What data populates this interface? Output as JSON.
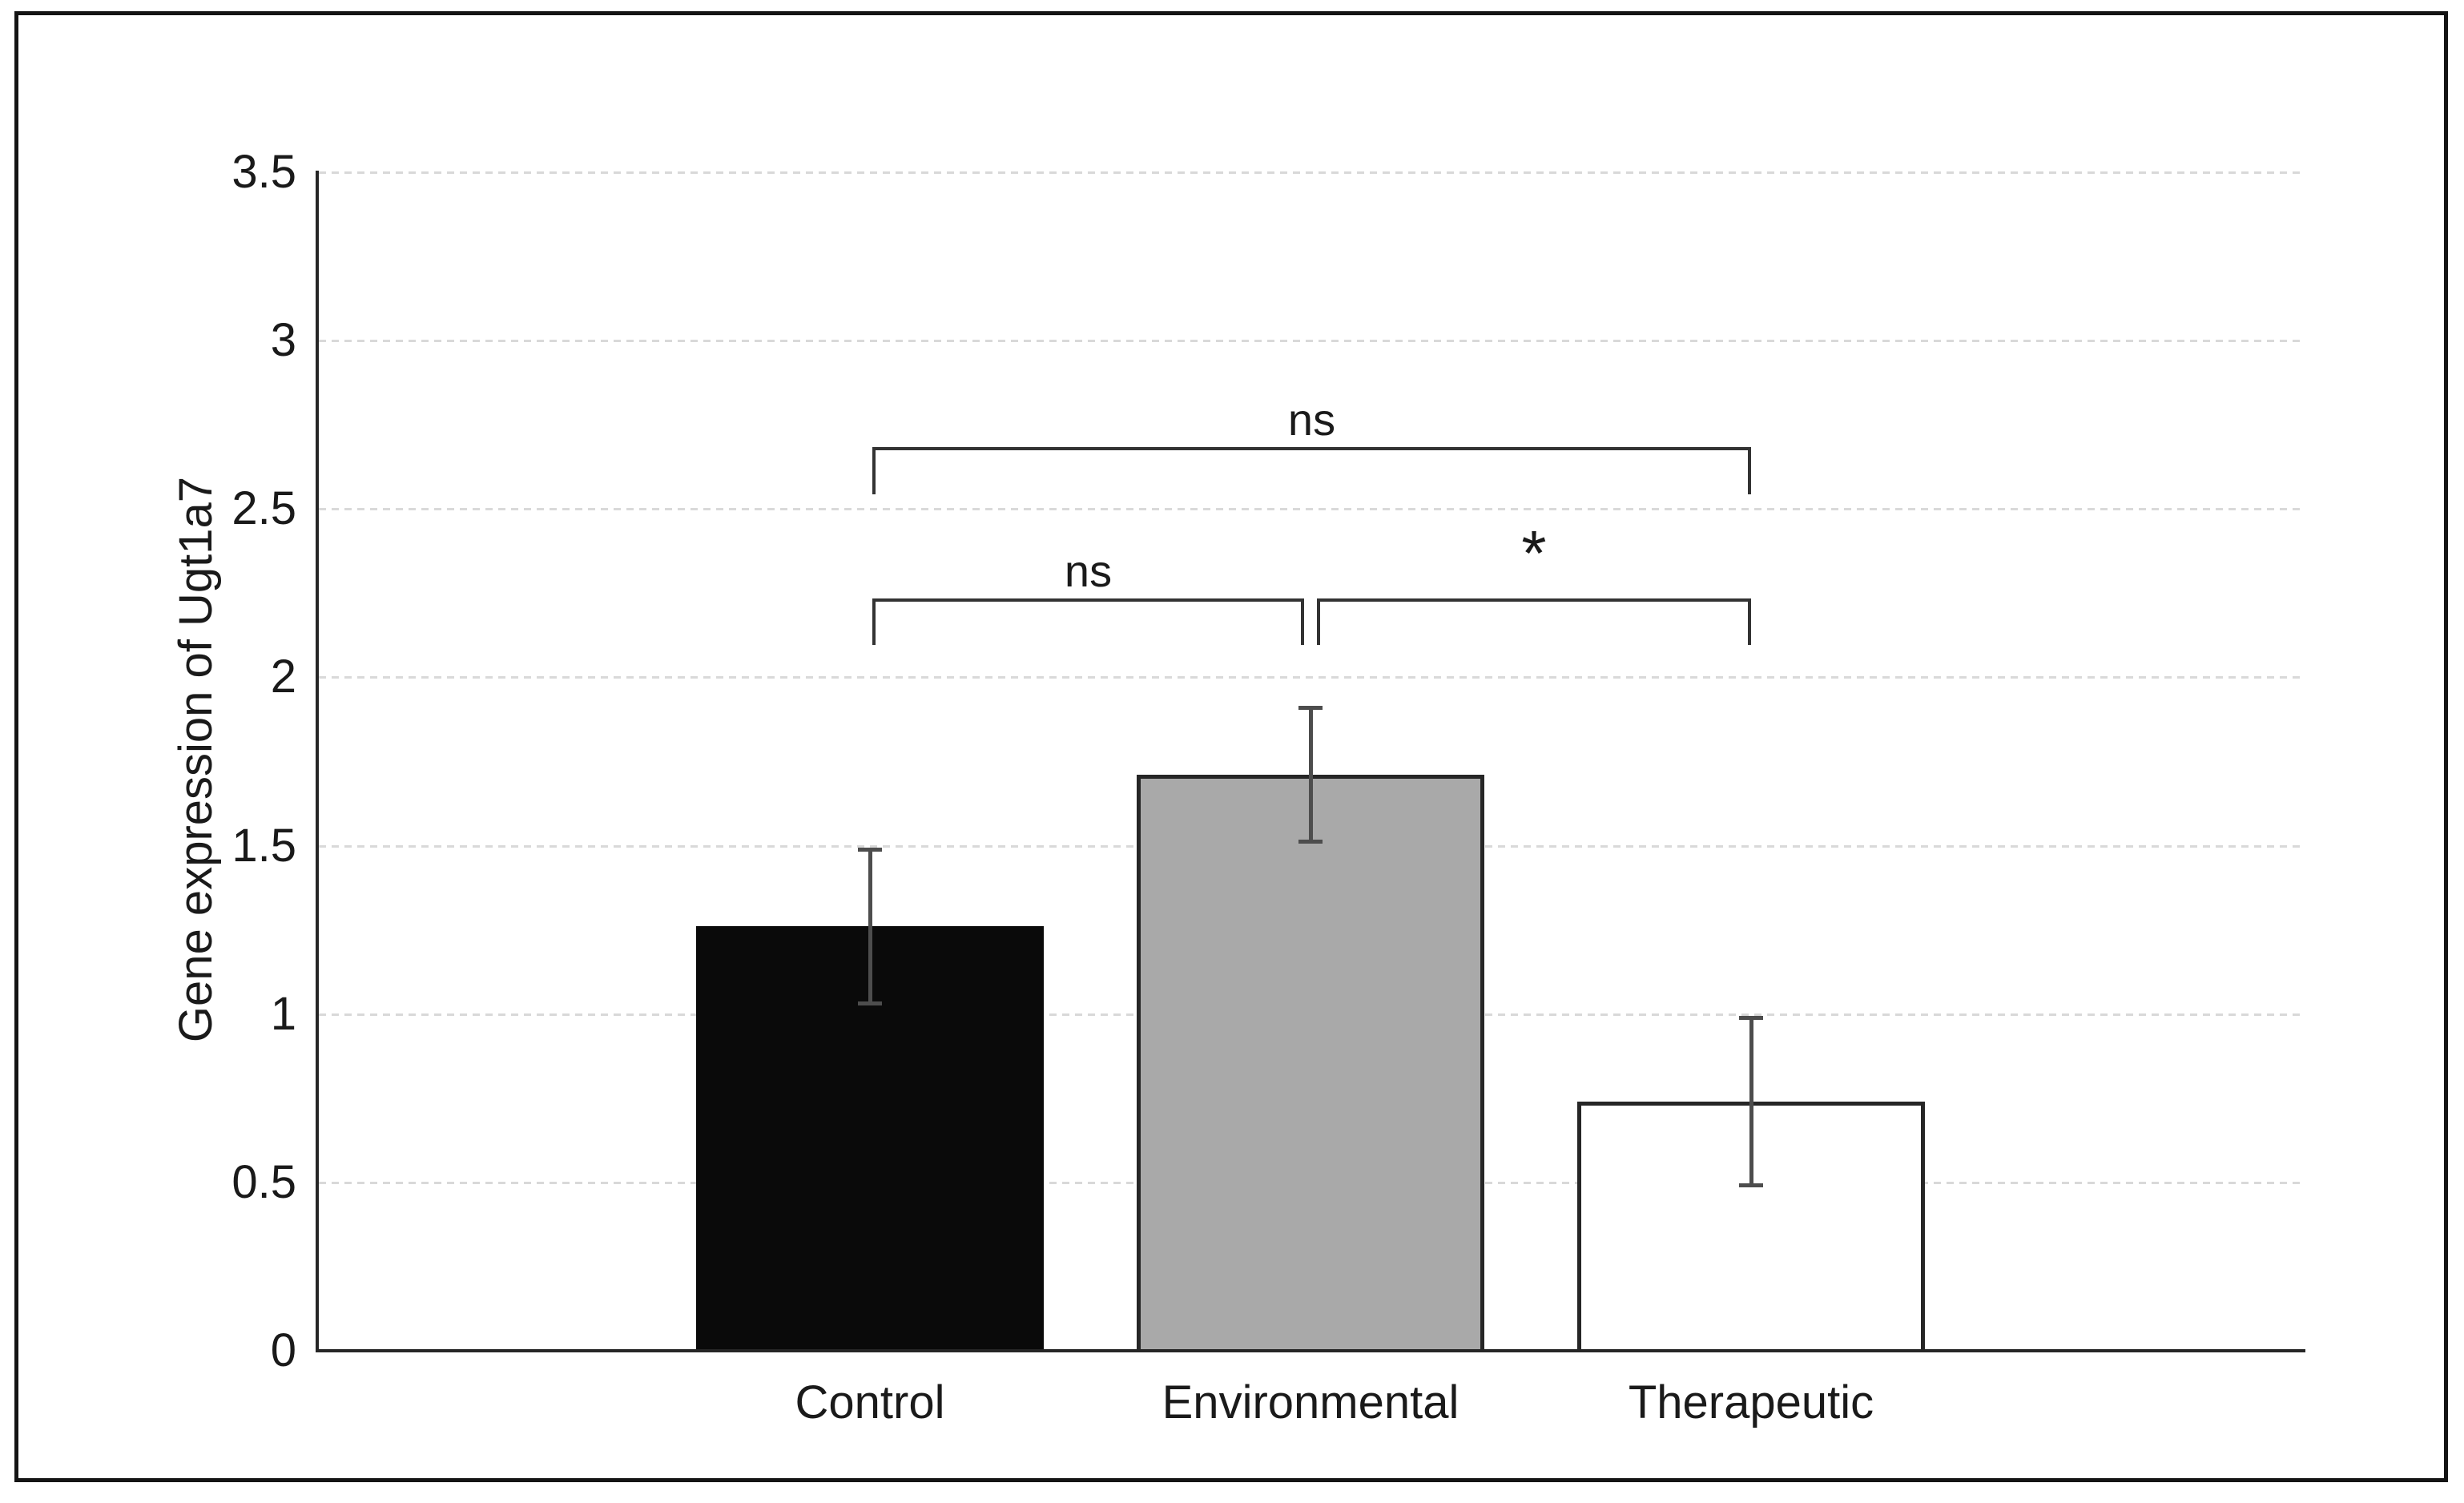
{
  "chart_data": {
    "type": "bar",
    "title": "",
    "xlabel": "",
    "ylabel": "Gene expression of Ugt1a7",
    "categories": [
      "Control",
      "Environmental",
      "Therapeutic"
    ],
    "values": [
      1.26,
      1.71,
      0.74
    ],
    "error_bars": [
      0.23,
      0.2,
      0.25
    ],
    "ylim": [
      0,
      3.5
    ],
    "yticks": [
      0,
      0.5,
      1,
      1.5,
      2,
      2.5,
      3,
      3.5
    ],
    "ytick_labels": [
      "0",
      "0.5",
      "1",
      "1.5",
      "2",
      "2.5",
      "3",
      "3.5"
    ],
    "grid": "horizontal dotted, light gray",
    "legend": "none",
    "bar_styles": [
      {
        "fill": "#0a0a0a",
        "border": "#0a0a0a"
      },
      {
        "fill": "#a9a9a9",
        "border": "#262626"
      },
      {
        "fill": "#ffffff",
        "border": "#262626"
      }
    ],
    "annotations": [
      {
        "label": "ns",
        "from": "Control",
        "to": "Environmental"
      },
      {
        "label": "*",
        "from": "Environmental",
        "to": "Therapeutic"
      },
      {
        "label": "ns",
        "from": "Control",
        "to": "Therapeutic"
      }
    ],
    "colors": {
      "axis": "#262626",
      "gridline": "#d9d9d9",
      "error_bar": "#4d4d4d",
      "bracket": "#333333",
      "text": "#1a1a1a",
      "frame_border": "#141414"
    }
  }
}
